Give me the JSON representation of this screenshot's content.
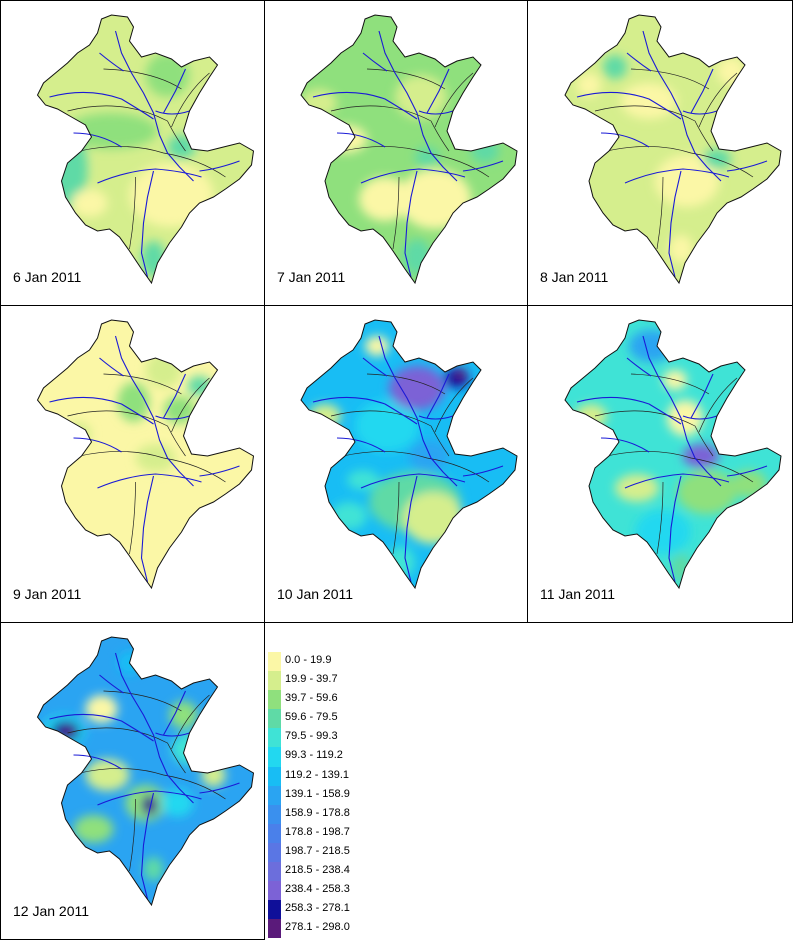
{
  "panels": [
    {
      "date": "6 Jan 2011"
    },
    {
      "date": "7 Jan 2011"
    },
    {
      "date": "8 Jan 2011"
    },
    {
      "date": "9 Jan 2011"
    },
    {
      "date": "10 Jan 2011"
    },
    {
      "date": "11 Jan 2011"
    },
    {
      "date": "12 Jan 2011"
    }
  ],
  "legend": {
    "classes": [
      {
        "label": "0.0 - 19.9",
        "color": "#fbf7a6"
      },
      {
        "label": "19.9 - 39.7",
        "color": "#d5ee8d"
      },
      {
        "label": "39.7 - 59.6",
        "color": "#8fe07d"
      },
      {
        "label": "59.6 - 79.5",
        "color": "#5fdaa6"
      },
      {
        "label": "79.5 - 99.3",
        "color": "#3fe3d6"
      },
      {
        "label": "99.3 - 119.2",
        "color": "#22d8f0"
      },
      {
        "label": "119.2 - 139.1",
        "color": "#18bdf4"
      },
      {
        "label": "139.1 - 158.9",
        "color": "#2aa4f2"
      },
      {
        "label": "158.9 - 178.8",
        "color": "#3a90ee"
      },
      {
        "label": "178.8 - 198.7",
        "color": "#4a80ea"
      },
      {
        "label": "198.7 - 218.5",
        "color": "#5a76e4"
      },
      {
        "label": "218.5 - 238.4",
        "color": "#6c6edc"
      },
      {
        "label": "238.4 - 258.3",
        "color": "#7c62d6"
      },
      {
        "label": "258.3 - 278.1",
        "color": "#0f0f99"
      },
      {
        "label": "278.1 - 298.0",
        "color": "#5a1a7a"
      }
    ]
  }
}
